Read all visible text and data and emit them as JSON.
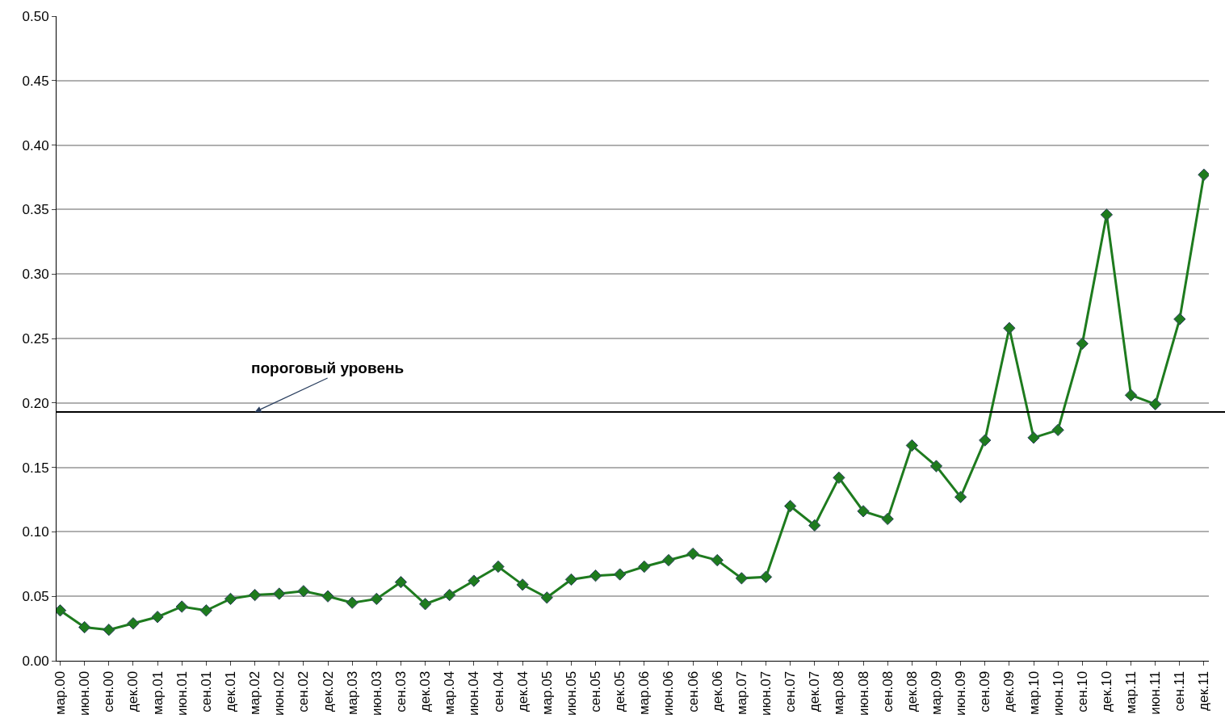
{
  "chart_data": {
    "type": "line",
    "categories": [
      "мар.00",
      "июн.00",
      "сен.00",
      "дек.00",
      "мар.01",
      "июн.01",
      "сен.01",
      "дек.01",
      "мар.02",
      "июн.02",
      "сен.02",
      "дек.02",
      "мар.03",
      "июн.03",
      "сен.03",
      "дек.03",
      "мар.04",
      "июн.04",
      "сен.04",
      "дек.04",
      "мар.05",
      "июн.05",
      "сен.05",
      "дек.05",
      "мар.06",
      "июн.06",
      "сен.06",
      "дек.06",
      "мар.07",
      "июн.07",
      "сен.07",
      "дек.07",
      "мар.08",
      "июн.08",
      "сен.08",
      "дек.08",
      "мар.09",
      "июн.09",
      "сен.09",
      "дек.09",
      "мар.10",
      "июн.10",
      "сен.10",
      "дек.10",
      "мар.11",
      "июн.11",
      "сен.11",
      "дек.11"
    ],
    "series": [
      {
        "color": "#1e7b1e",
        "values": [
          0.039,
          0.026,
          0.024,
          0.029,
          0.034,
          0.042,
          0.039,
          0.048,
          0.051,
          0.052,
          0.054,
          0.05,
          0.045,
          0.048,
          0.061,
          0.044,
          0.051,
          0.062,
          0.073,
          0.059,
          0.049,
          0.063,
          0.066,
          0.067,
          0.073,
          0.078,
          0.083,
          0.078,
          0.064,
          0.065,
          0.12,
          0.105,
          0.142,
          0.116,
          0.11,
          0.167,
          0.151,
          0.127,
          0.171,
          0.258,
          0.173,
          0.179,
          0.246,
          0.346,
          0.206,
          0.199,
          0.265,
          0.377
        ]
      }
    ],
    "ylim": [
      0,
      0.5
    ],
    "yticks": [
      {
        "value": 0,
        "label": "0.00"
      },
      {
        "value": 0.05,
        "label": "0.05"
      },
      {
        "value": 0.1,
        "label": "0.10"
      },
      {
        "value": 0.15,
        "label": "0.15"
      },
      {
        "value": 0.2,
        "label": "0.20"
      },
      {
        "value": 0.25,
        "label": "0.25"
      },
      {
        "value": 0.3,
        "label": "0.30"
      },
      {
        "value": 0.35,
        "label": "0.35"
      },
      {
        "value": 0.4,
        "label": "0.40"
      },
      {
        "value": 0.45,
        "label": "0.45"
      },
      {
        "value": 0.5,
        "label": "0.50"
      }
    ],
    "ref_lines": [
      {
        "axis": "y",
        "value": 0.193,
        "color": "#000000",
        "line_style": "solid"
      }
    ],
    "annotations": [
      {
        "text": "пороговый уровень",
        "x": "мар.02",
        "y": 0.193
      }
    ],
    "grid": "y",
    "marker": "diamond",
    "line_style": "solid"
  }
}
